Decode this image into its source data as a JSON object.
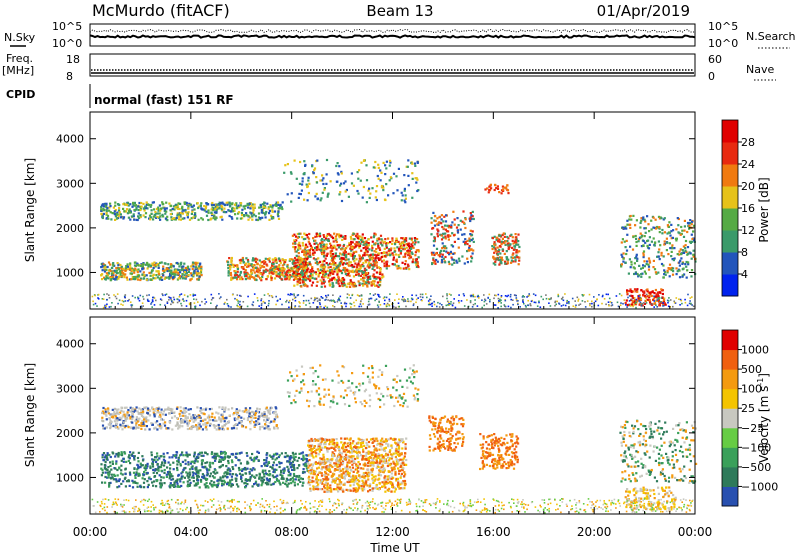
{
  "header": {
    "station": "McMurdo (fitACF)",
    "beam": "Beam 13",
    "date": "01/Apr/2019"
  },
  "status": {
    "nsky_label": "N.Sky",
    "nsearch_label": "N.Search",
    "freq_label": "Freq.",
    "freq_unit": "[MHz]",
    "nave_label": "Nave",
    "cpid_label": "CPID",
    "cpid_value": "normal (fast) 151 RF",
    "noise_ticks": [
      "10^5",
      "10^0"
    ],
    "freq_ticks": [
      "18",
      "8"
    ],
    "nave_ticks": [
      "60",
      "0"
    ]
  },
  "chart_data": [
    {
      "type": "heatmap",
      "panel": "power",
      "ylabel": "Slant Range [km]",
      "xlabel": "Time UT",
      "x_ticks": [
        "00:00",
        "04:00",
        "08:00",
        "12:00",
        "16:00",
        "20:00",
        "00:00"
      ],
      "y_ticks": [
        1000,
        2000,
        3000,
        4000
      ],
      "xlim_hours": [
        0,
        24
      ],
      "ylim_km": [
        180,
        4600
      ],
      "colorbar_label": "Power [dB]",
      "colorbar_ticks": [
        "4",
        "8",
        "12",
        "16",
        "20",
        "24",
        "28"
      ],
      "colorbar_colors": [
        "#0022ee",
        "#2255bb",
        "#3a9a6a",
        "#55aa44",
        "#e6c21a",
        "#f07a10",
        "#e82a10",
        "#e00000"
      ]
    },
    {
      "type": "heatmap",
      "panel": "velocity",
      "ylabel": "Slant Range [km]",
      "xlabel": "Time UT",
      "x_ticks": [
        "00:00",
        "04:00",
        "08:00",
        "12:00",
        "16:00",
        "20:00",
        "00:00"
      ],
      "y_ticks": [
        1000,
        2000,
        3000,
        4000
      ],
      "xlim_hours": [
        0,
        24
      ],
      "ylim_km": [
        180,
        4600
      ],
      "colorbar_label": "Velocity [m s",
      "colorbar_label_sup": "-1",
      "colorbar_ticks": [
        "1000",
        "500",
        "100",
        "25",
        "−25",
        "−100",
        "−500",
        "−1000"
      ],
      "colorbar_colors": [
        "#2850b0",
        "#2e7a5a",
        "#3aa05a",
        "#66cc44",
        "#c8c8c0",
        "#f4c400",
        "#f49a10",
        "#f06010",
        "#e00000"
      ]
    }
  ],
  "time_axis_label": "Time UT"
}
